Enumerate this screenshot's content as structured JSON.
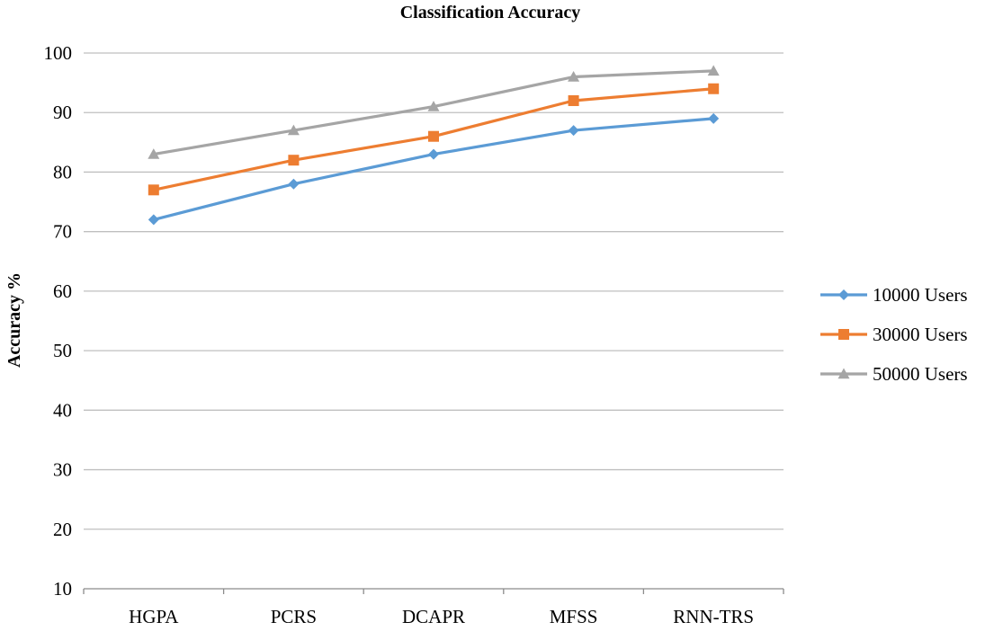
{
  "chart_data": {
    "type": "line",
    "title": "Classification Accuracy",
    "xlabel": "",
    "ylabel": "Accuracy %",
    "categories": [
      "HGPA",
      "PCRS",
      "DCAPR",
      "MFSS",
      "RNN-TRS"
    ],
    "ylim": [
      10,
      100
    ],
    "yticks": [
      10,
      20,
      30,
      40,
      50,
      60,
      70,
      80,
      90,
      100
    ],
    "grid": true,
    "legend_position": "right",
    "series": [
      {
        "name": "10000 Users",
        "values": [
          72,
          78,
          83,
          87,
          89
        ],
        "color": "#5b9bd5",
        "marker": "diamond"
      },
      {
        "name": "30000 Users",
        "values": [
          77,
          82,
          86,
          92,
          94
        ],
        "color": "#ed7d31",
        "marker": "square"
      },
      {
        "name": "50000 Users",
        "values": [
          83,
          87,
          91,
          96,
          97
        ],
        "color": "#a5a5a5",
        "marker": "triangle"
      }
    ]
  }
}
